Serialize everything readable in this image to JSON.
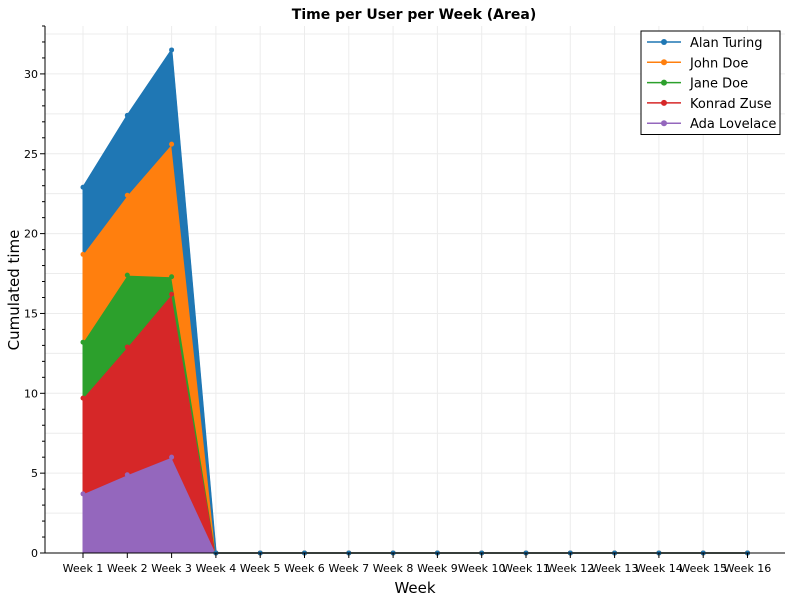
{
  "chart_data": {
    "type": "area",
    "stacked": true,
    "title": "Time per User per Week (Area)",
    "xlabel": "Week",
    "ylabel": "Cumulated time",
    "ylim": [
      0,
      33
    ],
    "yticks": [
      0,
      5,
      10,
      15,
      20,
      25,
      30
    ],
    "grid": true,
    "legend_position": "top-right",
    "categories": [
      "Week 1",
      "Week 2",
      "Week 3",
      "Week 4",
      "Week 5",
      "Week 6",
      "Week 7",
      "Week 8",
      "Week 9",
      "Week 10",
      "Week 11",
      "Week 12",
      "Week 13",
      "Week 14",
      "Week 15",
      "Week 16"
    ],
    "series": [
      {
        "name": "Ada Lovelace",
        "color": "#9467bd",
        "values": [
          3.7,
          4.9,
          6.0,
          0,
          0,
          0,
          0,
          0,
          0,
          0,
          0,
          0,
          0,
          0,
          0,
          0
        ]
      },
      {
        "name": "Konrad Zuse",
        "color": "#d62728",
        "values": [
          6.0,
          8.0,
          10.2,
          0,
          0,
          0,
          0,
          0,
          0,
          0,
          0,
          0,
          0,
          0,
          0,
          0
        ]
      },
      {
        "name": "Jane Doe",
        "color": "#2ca02c",
        "values": [
          3.5,
          4.5,
          1.1,
          0,
          0,
          0,
          0,
          0,
          0,
          0,
          0,
          0,
          0,
          0,
          0,
          0
        ]
      },
      {
        "name": "John Doe",
        "color": "#ff7f0e",
        "values": [
          5.5,
          5.0,
          8.3,
          0,
          0,
          0,
          0,
          0,
          0,
          0,
          0,
          0,
          0,
          0,
          0,
          0
        ]
      },
      {
        "name": "Alan Turing",
        "color": "#1f77b4",
        "values": [
          4.2,
          5.0,
          5.9,
          0,
          0,
          0,
          0,
          0,
          0,
          0,
          0,
          0,
          0,
          0,
          0,
          0
        ]
      }
    ],
    "legend_order": [
      "Alan Turing",
      "John Doe",
      "Jane Doe",
      "Konrad Zuse",
      "Ada Lovelace"
    ]
  }
}
